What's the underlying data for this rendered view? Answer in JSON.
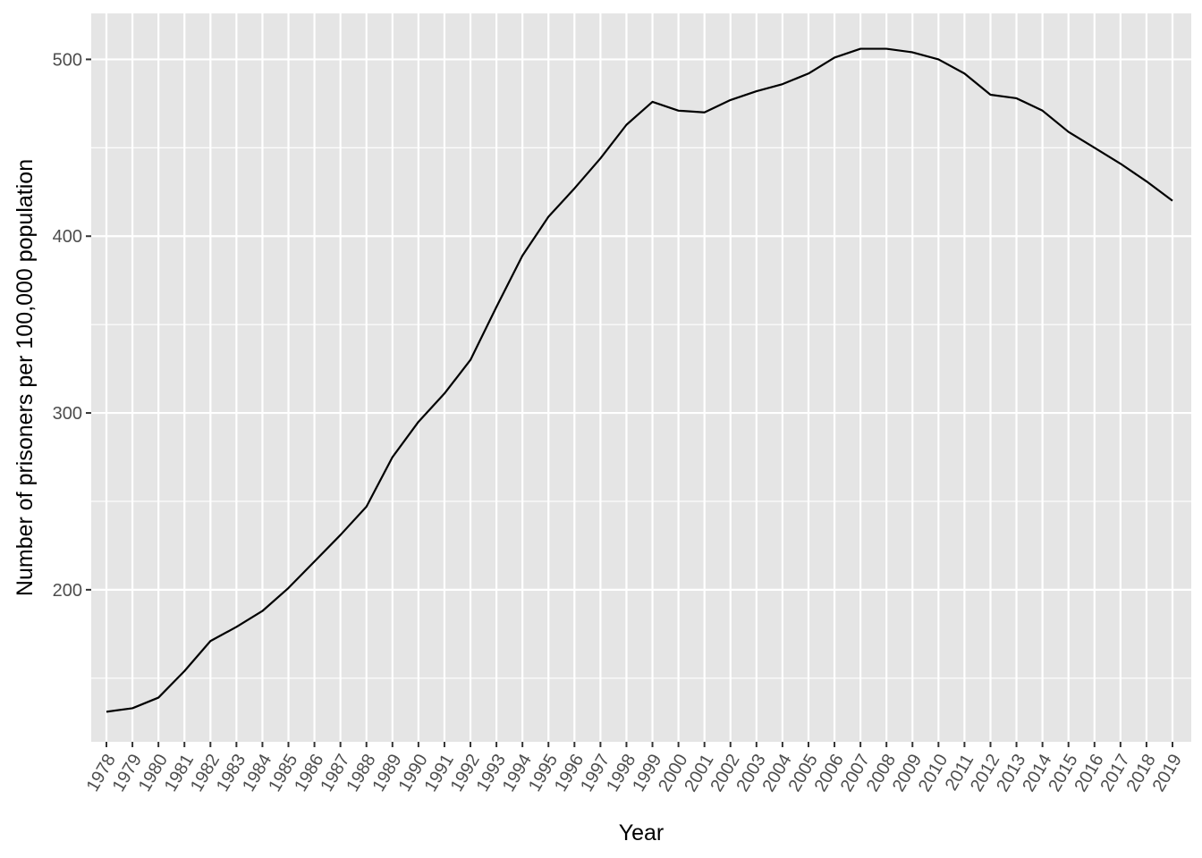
{
  "chart_data": {
    "type": "line",
    "xlabel": "Year",
    "ylabel": "Number of prisoners per 100,000 population",
    "x": [
      "1978",
      "1979",
      "1980",
      "1981",
      "1982",
      "1983",
      "1984",
      "1985",
      "1986",
      "1987",
      "1988",
      "1989",
      "1990",
      "1991",
      "1992",
      "1993",
      "1994",
      "1995",
      "1996",
      "1997",
      "1998",
      "1999",
      "2000",
      "2001",
      "2002",
      "2003",
      "2004",
      "2005",
      "2006",
      "2007",
      "2008",
      "2009",
      "2010",
      "2011",
      "2012",
      "2013",
      "2014",
      "2015",
      "2016",
      "2017",
      "2018",
      "2019"
    ],
    "series": [
      {
        "values": [
          131,
          133,
          139,
          154,
          171,
          179,
          188,
          201,
          216,
          231,
          247,
          275,
          295,
          311,
          330,
          360,
          389,
          411,
          427,
          444,
          463,
          476,
          471,
          470,
          477,
          482,
          486,
          492,
          501,
          506,
          506,
          504,
          500,
          492,
          480,
          478,
          471,
          459,
          450,
          441,
          431,
          420
        ],
        "color": "#000000"
      }
    ],
    "yticks": [
      200,
      300,
      400,
      500
    ],
    "ylim": [
      114,
      526
    ],
    "grid": true,
    "legend": "none",
    "panel_background": "#e5e5e5",
    "grid_color": "#ffffff"
  }
}
